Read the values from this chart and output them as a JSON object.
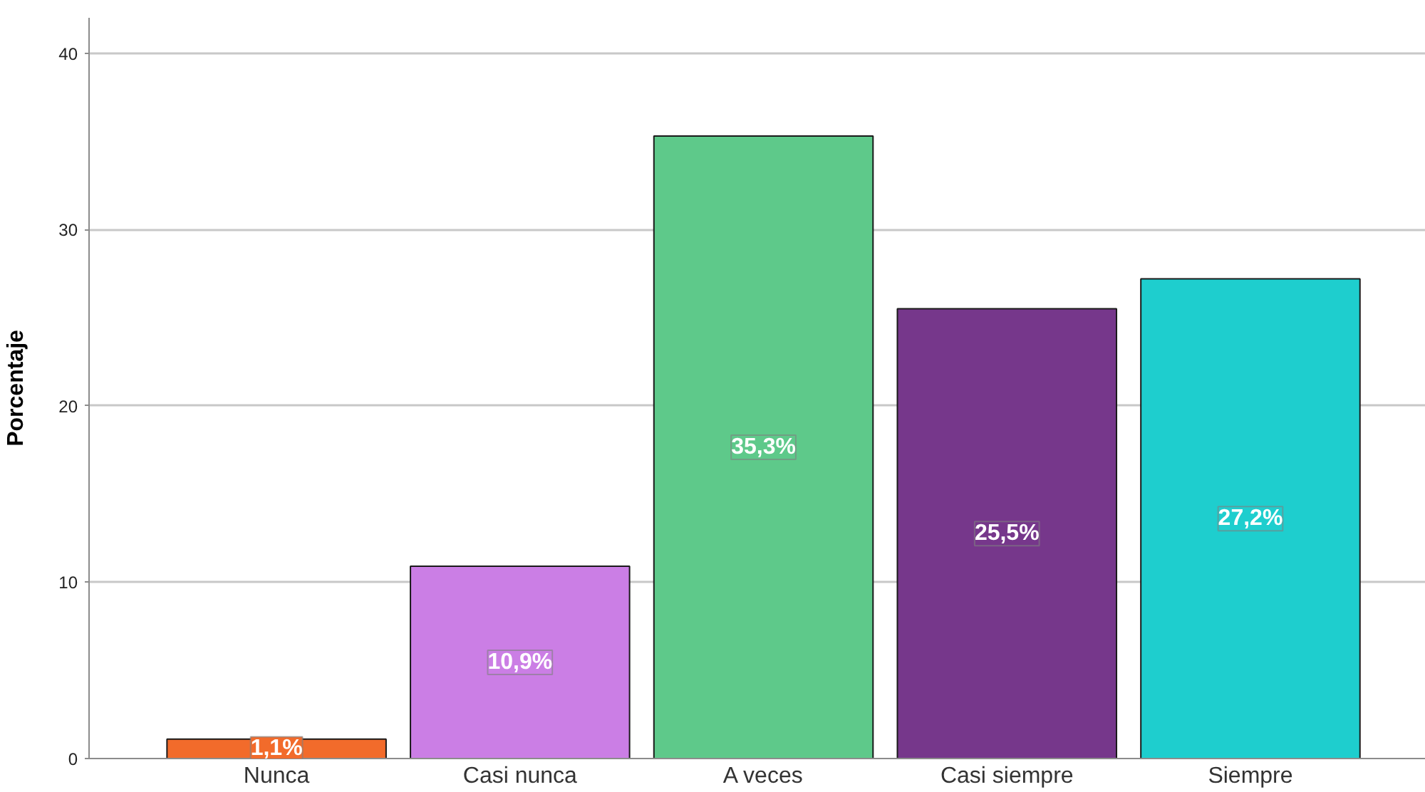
{
  "chart_data": {
    "type": "bar",
    "ylabel": "Porcentaje",
    "categories": [
      "Nunca",
      "Casi nunca",
      "A veces",
      "Casi siempre",
      "Siempre"
    ],
    "values": [
      1.1,
      10.9,
      35.3,
      25.5,
      27.2
    ],
    "colors": [
      "#f26b2b",
      "#cb7ee5",
      "#5ec98a",
      "#76378b",
      "#1ecece"
    ],
    "value_labels": [
      "1,1%",
      "10,9%",
      "35,3%",
      "25,5%",
      "27,2%"
    ],
    "ylim": [
      0,
      42
    ],
    "yticks": [
      0,
      10,
      20,
      30,
      40
    ],
    "grid": "y"
  }
}
